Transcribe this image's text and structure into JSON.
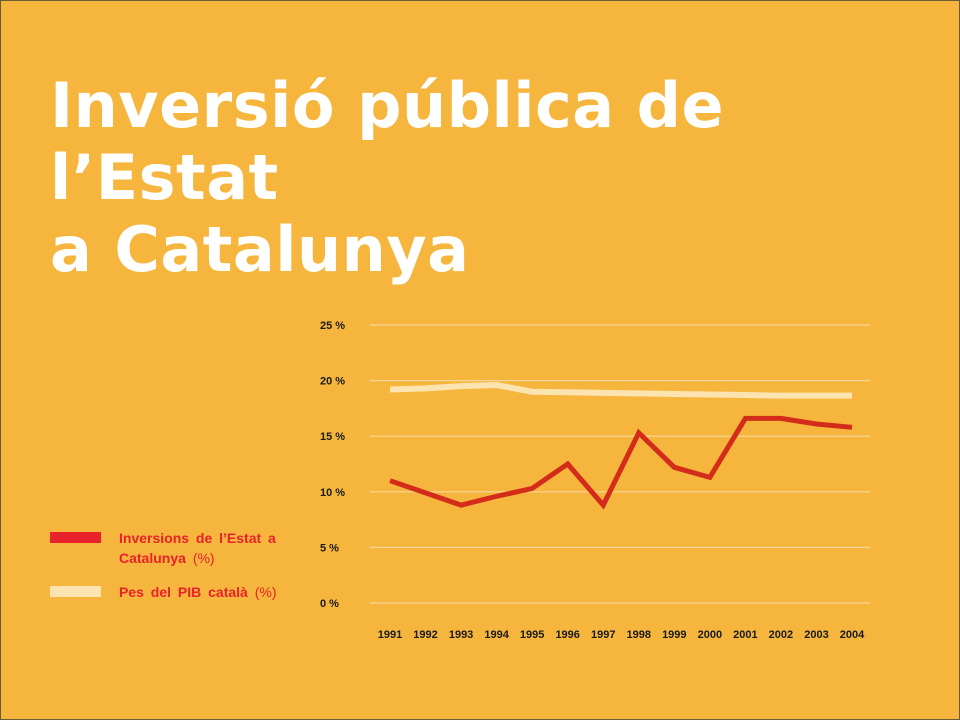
{
  "slide": {
    "title_line1": "Inversió pública de l’Estat",
    "title_line2": "a Catalunya"
  },
  "legend": [
    {
      "text": "Inversions  de l’Estat a Catalunya",
      "unit": "(%)",
      "color": "#e8222a"
    },
    {
      "text": "Pes del PIB català",
      "unit": "(%)",
      "color": "#fce3b0"
    }
  ],
  "chart_data": {
    "type": "line",
    "title": "",
    "xlabel": "",
    "ylabel": "",
    "x": [
      "1991",
      "1992",
      "1993",
      "1994",
      "1995",
      "1996",
      "1997",
      "1998",
      "1999",
      "2000",
      "2001",
      "2002",
      "2003",
      "2004"
    ],
    "yticks": [
      "0 %",
      "5 %",
      "10 %",
      "15 %",
      "20 %",
      "25 %"
    ],
    "ylim": [
      0,
      25
    ],
    "grid": true,
    "series": [
      {
        "name": "Inversions  de l’Estat a Catalunya (%)",
        "color": "#d42c1a",
        "values": [
          11.0,
          9.9,
          8.8,
          9.6,
          10.3,
          12.5,
          8.8,
          15.3,
          12.2,
          11.3,
          16.6,
          16.6,
          16.1,
          15.8
        ]
      },
      {
        "name": "Pes del PIB català (%)",
        "color": "#fce3b0",
        "values": [
          19.2,
          19.3,
          19.5,
          19.6,
          19.0,
          18.95,
          18.9,
          18.85,
          18.8,
          18.75,
          18.7,
          18.65,
          18.65,
          18.65
        ]
      }
    ]
  }
}
